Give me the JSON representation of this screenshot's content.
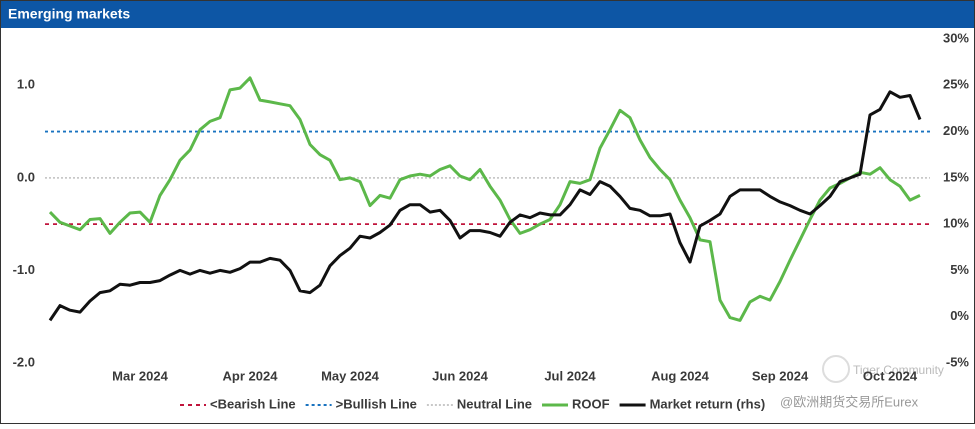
{
  "chart_data": {
    "type": "line",
    "title": "Emerging markets",
    "categories": [
      null,
      null,
      null,
      null,
      null,
      null,
      null,
      null,
      null,
      "Mar 2024",
      null,
      null,
      null,
      null,
      null,
      null,
      null,
      null,
      null,
      null,
      "Apr 2024",
      null,
      null,
      null,
      null,
      null,
      null,
      null,
      null,
      null,
      "May 2024",
      null,
      null,
      null,
      null,
      null,
      null,
      null,
      null,
      null,
      null,
      "Jun 2024",
      null,
      null,
      null,
      null,
      null,
      null,
      null,
      null,
      null,
      null,
      "Jul 2024",
      null,
      null,
      null,
      null,
      null,
      null,
      null,
      null,
      null,
      null,
      "Aug 2024",
      null,
      null,
      null,
      null,
      null,
      null,
      null,
      null,
      null,
      "Sep 2024",
      null,
      null,
      null,
      null,
      null,
      null,
      null,
      null,
      null,
      null,
      "Oct 2024",
      null,
      null,
      null
    ],
    "reference_lines": [
      {
        "name": "<Bearish Line",
        "value": -0.5,
        "color": "#c0143c"
      },
      {
        "name": ">Bullish Line",
        "value": 0.5,
        "color": "#1a73c0"
      },
      {
        "name": "Neutral Line",
        "value": 0,
        "color": "#c8c8c8"
      }
    ],
    "series": [
      {
        "name": "ROOF",
        "color": "#5cb84a",
        "values": [
          -0.37,
          -0.48,
          -0.52,
          -0.56,
          -0.45,
          -0.44,
          -0.6,
          -0.48,
          -0.38,
          -0.37,
          -0.48,
          -0.19,
          -0.02,
          0.19,
          0.3,
          0.52,
          0.61,
          0.65,
          0.95,
          0.97,
          1.08,
          0.84,
          0.82,
          0.8,
          0.78,
          0.63,
          0.36,
          0.25,
          0.19,
          -0.02,
          0.0,
          -0.04,
          -0.3,
          -0.19,
          -0.22,
          -0.02,
          0.02,
          0.04,
          0.02,
          0.09,
          0.13,
          0.02,
          -0.02,
          0.09,
          -0.09,
          -0.24,
          -0.45,
          -0.6,
          -0.56,
          -0.5,
          -0.45,
          -0.29,
          -0.04,
          -0.06,
          -0.02,
          0.32,
          0.52,
          0.73,
          0.65,
          0.41,
          0.22,
          0.09,
          -0.02,
          -0.24,
          -0.43,
          -0.67,
          -0.69,
          -1.32,
          -1.51,
          -1.54,
          -1.34,
          -1.28,
          -1.32,
          -1.12,
          -0.89,
          -0.67,
          -0.45,
          -0.24,
          -0.11,
          -0.06,
          0,
          0.06,
          0.04,
          0.11,
          -0.02,
          -0.09,
          -0.24,
          -0.19
        ]
      },
      {
        "name": "Market return (rhs)",
        "color": "#111111",
        "axis": "y2",
        "values": [
          -0.4,
          1.2,
          0.7,
          0.5,
          1.7,
          2.6,
          2.8,
          3.5,
          3.4,
          3.7,
          3.7,
          3.9,
          4.5,
          5.0,
          4.6,
          5.0,
          4.7,
          5.0,
          4.8,
          5.2,
          5.9,
          5.9,
          6.3,
          6.1,
          5.0,
          2.8,
          2.6,
          3.4,
          5.5,
          6.6,
          7.4,
          8.7,
          8.5,
          9.1,
          9.9,
          11.5,
          12.1,
          12.1,
          11.3,
          11.5,
          10.4,
          8.5,
          9.3,
          9.3,
          9.1,
          8.7,
          10.2,
          11.0,
          10.7,
          11.2,
          11.0,
          11.0,
          12.1,
          13.7,
          13.2,
          14.6,
          14.1,
          13.0,
          11.7,
          11.5,
          10.9,
          10.9,
          11.1,
          8.0,
          5.9,
          9.8,
          10.4,
          11.1,
          13.0,
          13.7,
          13.7,
          13.7,
          13.0,
          12.4,
          12.0,
          11.5,
          11.1,
          12.0,
          13.0,
          14.6,
          15.0,
          15.4,
          21.8,
          22.4,
          24.3,
          23.7,
          23.9,
          21.3
        ]
      }
    ],
    "ylim": [
      -2,
      1.5
    ],
    "yticks": [
      {
        "value": -2,
        "label": "-2.0"
      },
      {
        "value": -1,
        "label": "-1.0"
      },
      {
        "value": 0,
        "label": "0.0"
      },
      {
        "value": 1,
        "label": "1.0"
      }
    ],
    "y2lim": [
      -5,
      30
    ],
    "y2ticks": [
      {
        "value": -5,
        "label": "-5%"
      },
      {
        "value": 0,
        "label": "0%"
      },
      {
        "value": 5,
        "label": "5%"
      },
      {
        "value": 10,
        "label": "10%"
      },
      {
        "value": 15,
        "label": "15%"
      },
      {
        "value": 20,
        "label": "20%"
      },
      {
        "value": 25,
        "label": "25%"
      },
      {
        "value": 30,
        "label": "30%"
      }
    ],
    "legend": "bottom",
    "watermarks": [
      "Tiger Community",
      "@欧洲期货交易所Eurex"
    ]
  }
}
